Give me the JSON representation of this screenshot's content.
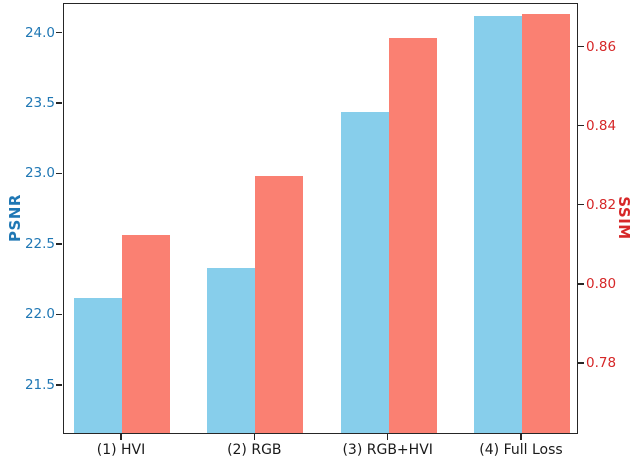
{
  "chart_data": {
    "type": "bar",
    "categories": [
      "(1) HVI",
      "(2) RGB",
      "(3) RGB+HVI",
      "(4) Full Loss"
    ],
    "series": [
      {
        "name": "PSNR",
        "axis": "left",
        "color": "#87CEEB",
        "values": [
          22.11,
          22.32,
          23.43,
          24.11
        ]
      },
      {
        "name": "SSIM",
        "axis": "right",
        "color": "#FA8072",
        "values": [
          0.812,
          0.827,
          0.862,
          0.868
        ]
      }
    ],
    "left_axis": {
      "label": "PSNR",
      "color": "#1f77b4",
      "tick_labels": [
        "24.0",
        "23.5",
        "23.0",
        "22.5",
        "22.0",
        "21.5"
      ],
      "tick_values": [
        24.0,
        23.5,
        23.0,
        22.5,
        22.0,
        21.5
      ],
      "ylim": [
        21.15,
        24.21
      ]
    },
    "right_axis": {
      "label": "SSIM",
      "color": "#d62728",
      "tick_labels": [
        "0.86",
        "0.84",
        "0.82",
        "0.80",
        "0.78"
      ],
      "tick_values": [
        0.86,
        0.84,
        0.82,
        0.8,
        0.78
      ],
      "ylim": [
        0.762,
        0.871
      ]
    },
    "xlim": [
      -0.435,
      3.4275
    ],
    "bar_width": 0.36,
    "grid": false,
    "legend": "none"
  }
}
